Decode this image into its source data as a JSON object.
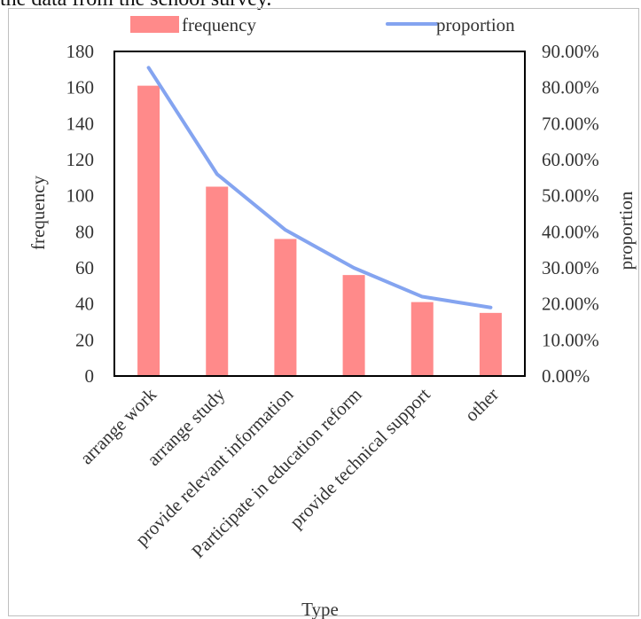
{
  "caption": "the data from the school survey.",
  "chart_data": {
    "type": "bar",
    "categories": [
      "arrange work",
      "arrange study",
      "provide relevant information",
      "Participate in education reform",
      "provide technical support",
      "other"
    ],
    "series": [
      {
        "name": "frequency",
        "kind": "bar",
        "axis": "left",
        "color": "#ff8a8a",
        "values": [
          161,
          105,
          76,
          56,
          41,
          35
        ]
      },
      {
        "name": "proportion",
        "kind": "line",
        "axis": "right",
        "color": "#84a4f0",
        "values": [
          0.855,
          0.56,
          0.405,
          0.3,
          0.22,
          0.19
        ]
      }
    ],
    "xlabel": "Type",
    "ylabel": "frequency",
    "y2label": "proportion",
    "ylim": [
      0,
      180
    ],
    "y2lim": [
      0,
      0.9
    ],
    "yticks": [
      "0",
      "20",
      "40",
      "60",
      "80",
      "100",
      "120",
      "140",
      "160",
      "180"
    ],
    "y2ticks": [
      "0.00%",
      "10.00%",
      "20.00%",
      "30.00%",
      "40.00%",
      "50.00%",
      "60.00%",
      "70.00%",
      "80.00%",
      "90.00%"
    ],
    "legend": "top",
    "grid": false
  }
}
